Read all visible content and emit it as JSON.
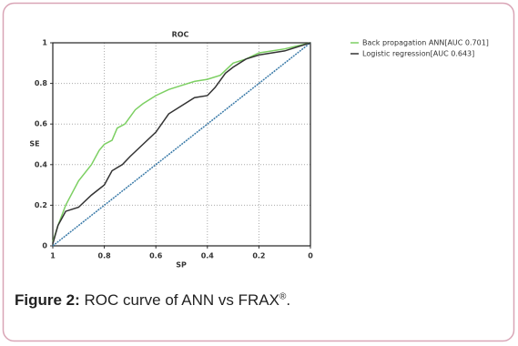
{
  "chart_data": {
    "type": "line",
    "title": "ROC",
    "x_label": "SP",
    "y_label": "SE",
    "xlim": [
      1,
      0
    ],
    "ylim": [
      0,
      1
    ],
    "xticks": [
      1,
      0.8,
      0.6,
      0.4,
      0.2,
      0
    ],
    "yticks": [
      0,
      0.2,
      0.4,
      0.6,
      0.8,
      1
    ],
    "grid": true,
    "legend": "upper right",
    "series": [
      {
        "name": "Back propagation ANN[AUC 0.701]",
        "color": "#7ccf62",
        "x": [
          1,
          0.98,
          0.95,
          0.9,
          0.85,
          0.82,
          0.8,
          0.77,
          0.75,
          0.72,
          0.68,
          0.65,
          0.6,
          0.55,
          0.5,
          0.45,
          0.4,
          0.35,
          0.3,
          0.25,
          0.2,
          0.1,
          0
        ],
        "values": [
          0.02,
          0.1,
          0.2,
          0.32,
          0.4,
          0.47,
          0.5,
          0.52,
          0.58,
          0.6,
          0.67,
          0.7,
          0.74,
          0.77,
          0.79,
          0.81,
          0.82,
          0.84,
          0.9,
          0.92,
          0.95,
          0.97,
          1
        ]
      },
      {
        "name": "Logistic regression[AUC 0.643]",
        "color": "#333333",
        "x": [
          1,
          0.98,
          0.95,
          0.9,
          0.85,
          0.8,
          0.77,
          0.73,
          0.7,
          0.65,
          0.6,
          0.55,
          0.5,
          0.45,
          0.4,
          0.37,
          0.33,
          0.3,
          0.25,
          0.2,
          0.1,
          0
        ],
        "values": [
          0.01,
          0.1,
          0.17,
          0.19,
          0.25,
          0.3,
          0.37,
          0.4,
          0.44,
          0.5,
          0.56,
          0.65,
          0.69,
          0.73,
          0.74,
          0.78,
          0.85,
          0.88,
          0.92,
          0.94,
          0.96,
          1
        ]
      }
    ],
    "reference_line": {
      "x": [
        1,
        0
      ],
      "values": [
        0,
        1
      ],
      "color": "#3a7aa8"
    }
  },
  "caption": {
    "label": "Figure 2:",
    "text": "ROC curve of ANN vs FRAX",
    "sup": "®",
    "end": "."
  }
}
